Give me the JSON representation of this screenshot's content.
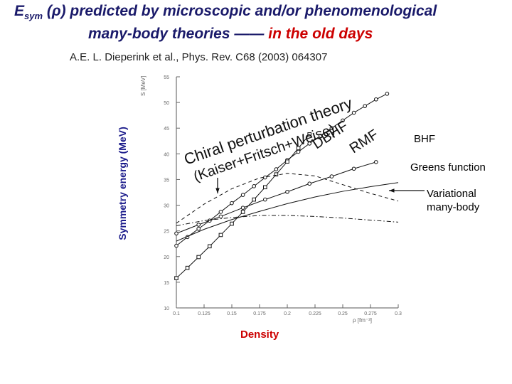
{
  "header": {
    "title_symbol": "E",
    "title_subscript": "sym",
    "title_rest": " (ρ) predicted by microscopic and/or phenomenological",
    "title_line2_main": "many-body theories ",
    "title_line2_dash": "—— ",
    "title_line2_red": "in the old days",
    "citation": "A.E. L. Dieperink et al., Phys. Rev. C68 (2003) 064307"
  },
  "chart_data": {
    "type": "line",
    "title": "Esym (ρ) predicted by microscopic and/or phenomenological many-body theories —— in the old days",
    "xlabel": "Density",
    "ylabel": "Symmetry energy (MeV)",
    "inner_xlabel": "ρ [fm⁻³]",
    "inner_ylabel": "S [MeV]",
    "xlim": [
      0.1,
      0.3
    ],
    "ylim": [
      10,
      55
    ],
    "xticks": [
      0.1,
      0.125,
      0.15,
      0.175,
      0.2,
      0.225,
      0.25,
      0.275,
      0.3
    ],
    "xtick_labels": [
      "0.1",
      "0.125",
      "0.15",
      "0.175",
      "0.2",
      "0.225",
      "0.25",
      "0.275",
      "0.3"
    ],
    "yticks": [
      10,
      15,
      20,
      25,
      30,
      35,
      40,
      45,
      50,
      55
    ],
    "ytick_labels": [
      "10",
      "15",
      "20",
      "25",
      "30",
      "35",
      "40",
      "45",
      "50",
      "55"
    ],
    "series": [
      {
        "name": "DBHF",
        "style": "line-circle",
        "x": [
          0.1,
          0.11,
          0.12,
          0.13,
          0.14,
          0.15,
          0.16,
          0.17,
          0.18,
          0.19,
          0.2,
          0.21,
          0.22,
          0.23,
          0.24,
          0.25,
          0.26,
          0.27,
          0.28,
          0.29
        ],
        "y": [
          22.1,
          23.8,
          25.4,
          27.0,
          28.7,
          30.4,
          32.0,
          33.7,
          35.4,
          37.0,
          38.8,
          40.4,
          42.0,
          43.5,
          45.0,
          46.5,
          48.0,
          49.3,
          50.6,
          51.7
        ]
      },
      {
        "name": "Chiral perturbation theory (Kaiser+Fritsch+Weise)",
        "style": "line-square",
        "x": [
          0.1,
          0.11,
          0.12,
          0.13,
          0.14,
          0.15,
          0.16,
          0.17,
          0.18,
          0.19,
          0.2,
          0.21,
          0.22
        ],
        "y": [
          15.8,
          17.8,
          19.9,
          22.0,
          24.2,
          26.4,
          28.7,
          31.1,
          33.5,
          36.0,
          38.5,
          41.1,
          43.8
        ]
      },
      {
        "name": "RMF",
        "style": "line-circle",
        "x": [
          0.1,
          0.12,
          0.14,
          0.16,
          0.18,
          0.2,
          0.22,
          0.24,
          0.26,
          0.28
        ],
        "y": [
          24.5,
          26.2,
          27.8,
          29.5,
          31.1,
          32.6,
          34.2,
          35.6,
          37.1,
          38.4
        ]
      },
      {
        "name": "BHF",
        "style": "dashed",
        "x": [
          0.1,
          0.125,
          0.15,
          0.175,
          0.2,
          0.225,
          0.25,
          0.275,
          0.3
        ],
        "y": [
          26.5,
          30.2,
          33.2,
          35.3,
          36.2,
          35.7,
          34.0,
          32.3,
          30.8
        ]
      },
      {
        "name": "Greens function",
        "style": "solid",
        "x": [
          0.1,
          0.125,
          0.15,
          0.175,
          0.2,
          0.225,
          0.25,
          0.275,
          0.3
        ],
        "y": [
          23.0,
          25.3,
          27.2,
          28.8,
          30.3,
          31.6,
          32.7,
          33.6,
          34.4
        ]
      },
      {
        "name": "Variational many-body",
        "style": "dash-dot",
        "x": [
          0.1,
          0.125,
          0.15,
          0.175,
          0.2,
          0.225,
          0.25,
          0.275,
          0.3
        ],
        "y": [
          26.0,
          27.0,
          27.6,
          28.0,
          28.0,
          27.8,
          27.5,
          27.1,
          26.7
        ]
      }
    ],
    "annotations": [
      {
        "text": "Chiral perturbation theory",
        "label_lines": [
          "Chiral perturbation theory",
          "(Kaiser+Fritsch+Weise)"
        ]
      },
      {
        "text": "DBHF"
      },
      {
        "text": "RMF"
      }
    ],
    "legend": {
      "bhf": "BHF",
      "greens": "Greens function",
      "variational_line1": "Variational",
      "variational_line2": "many-body"
    }
  }
}
